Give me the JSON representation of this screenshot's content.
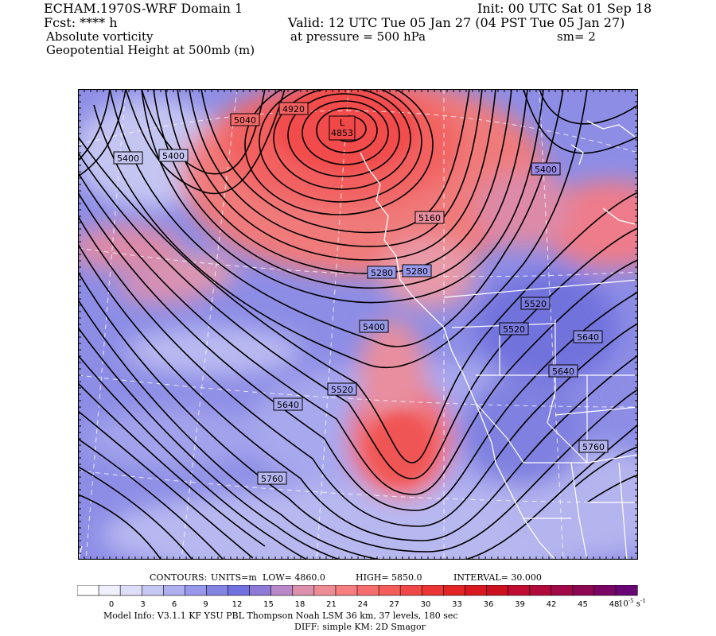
{
  "header": {
    "model_title": "ECHAM.1970S-WRF Domain 1",
    "init_time": "Init: 00 UTC Sat 01 Sep 18",
    "forecast": "Fcst: **** h",
    "valid_time": "Valid: 12 UTC Tue 05 Jan 27 (04 PST Tue 05 Jan 27)",
    "field_1": "Absolute vorticity",
    "pressure_level": "at pressure =  500 hPa",
    "smoothing": "sm= 2",
    "field_2": "Geopotential Height at 500mb (m)"
  },
  "map": {
    "low_center": {
      "symbol": "L",
      "value": "4853"
    },
    "contour_labels": [
      {
        "id": "5040",
        "text": "5040"
      },
      {
        "id": "4920",
        "text": "4920"
      },
      {
        "id": "5400-a",
        "text": "5400"
      },
      {
        "id": "5400-b",
        "text": "5400"
      },
      {
        "id": "5400-c",
        "text": "5400"
      },
      {
        "id": "5160",
        "text": "5160"
      },
      {
        "id": "5280-a",
        "text": "5280"
      },
      {
        "id": "5280-b",
        "text": "5280"
      },
      {
        "id": "5520-a",
        "text": "5520"
      },
      {
        "id": "5520-b",
        "text": "5520"
      },
      {
        "id": "5400-d",
        "text": "5400"
      },
      {
        "id": "5640-a",
        "text": "5640"
      },
      {
        "id": "5640-b",
        "text": "5640"
      },
      {
        "id": "5520-c",
        "text": "5520"
      },
      {
        "id": "5640-c",
        "text": "5640"
      },
      {
        "id": "5760-a",
        "text": "5760"
      },
      {
        "id": "5760-b",
        "text": "5760"
      }
    ]
  },
  "contour_info": {
    "contours": "CONTOURS:",
    "units": "UNITS=m",
    "low": "LOW=   4860.0",
    "high": "HIGH=  5850.0",
    "interval": "INTERVAL=     30.000"
  },
  "colorbar": {
    "ticks": [
      "0",
      "3",
      "6",
      "9",
      "12",
      "15",
      "18",
      "21",
      "24",
      "27",
      "30",
      "33",
      "36",
      "39",
      "42",
      "45",
      "48"
    ],
    "units_label": "10",
    "units_exp": "-5",
    "units_suffix": "s",
    "units_suffix_exp": "-1",
    "colors": [
      "#ffffff",
      "#f0f0fc",
      "#dedef8",
      "#c7c7f3",
      "#afafef",
      "#9898ea",
      "#8383e4",
      "#7070df",
      "#8c7ad6",
      "#b888c8",
      "#dc90ac",
      "#ee8c96",
      "#f47e80",
      "#f56e6e",
      "#f45c5a",
      "#f04848",
      "#eb3434",
      "#e22424",
      "#d81820",
      "#cc1020",
      "#c00c30",
      "#b00a3c",
      "#a00848",
      "#8c0654",
      "#7a0464",
      "#680474"
    ]
  },
  "footer": {
    "model_info": "Model Info: V3.1.1    KF     YSU PBL   Thompson     Noah LSM  36 km,    37 levels,   180 sec",
    "diff_info": "DIFF: simple KM: 2D Smagor"
  }
}
